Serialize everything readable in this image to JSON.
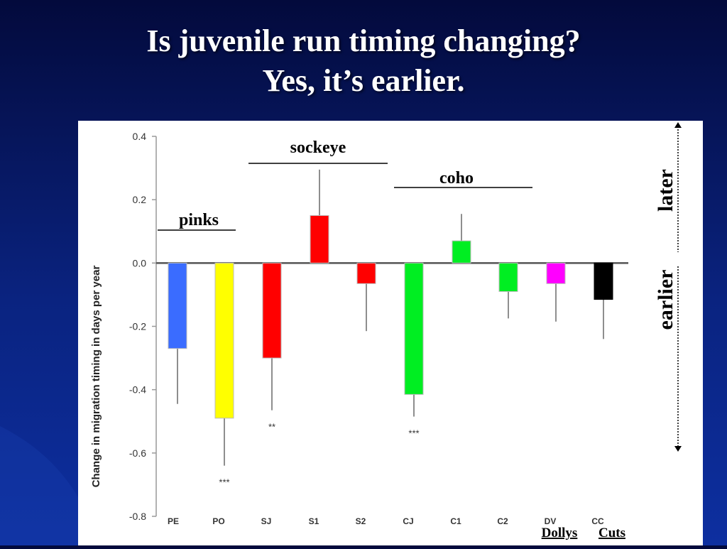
{
  "slide": {
    "title_line1": "Is juvenile run timing changing?",
    "title_line2": "Yes, it’s earlier.",
    "background_color": "#0a2380"
  },
  "chart_data": {
    "type": "bar",
    "ylabel": "Change in migration timing in days per year",
    "ylim": [
      -0.8,
      0.4
    ],
    "yticks": [
      "0.4",
      "0.2",
      "0.0",
      "-0.2",
      "-0.4",
      "-0.6",
      "-0.8"
    ],
    "ytick_values": [
      0.4,
      0.2,
      0.0,
      -0.2,
      -0.4,
      -0.6,
      -0.8
    ],
    "categories": [
      "PE",
      "PO",
      "SJ",
      "S1",
      "S2",
      "CJ",
      "C1",
      "C2",
      "DV",
      "CC"
    ],
    "values": [
      -0.27,
      -0.49,
      -0.3,
      0.15,
      -0.065,
      -0.415,
      0.07,
      -0.09,
      -0.065,
      -0.115
    ],
    "error_ends": [
      -0.445,
      -0.64,
      -0.465,
      0.295,
      -0.215,
      -0.485,
      0.155,
      -0.175,
      -0.185,
      -0.24
    ],
    "colors": [
      "#3a6cff",
      "#ffff00",
      "#ff0000",
      "#ff0000",
      "#ff0000",
      "#00ee22",
      "#00ee22",
      "#00ee22",
      "#ff00ff",
      "#000000"
    ],
    "significance": [
      "",
      "***",
      "**",
      "",
      "",
      "***",
      "",
      "",
      "",
      ""
    ],
    "groups": [
      {
        "label": "pinks",
        "categories": [
          "PE",
          "PO"
        ]
      },
      {
        "label": "sockeye",
        "categories": [
          "SJ",
          "S1",
          "S2"
        ]
      },
      {
        "label": "coho",
        "categories": [
          "CJ",
          "C1",
          "C2"
        ]
      },
      {
        "label": "Dollys",
        "categories": [
          "DV"
        ]
      },
      {
        "label": "Cuts",
        "categories": [
          "CC"
        ]
      }
    ],
    "direction_labels": {
      "up": "later",
      "down": "earlier"
    },
    "grid": false
  }
}
